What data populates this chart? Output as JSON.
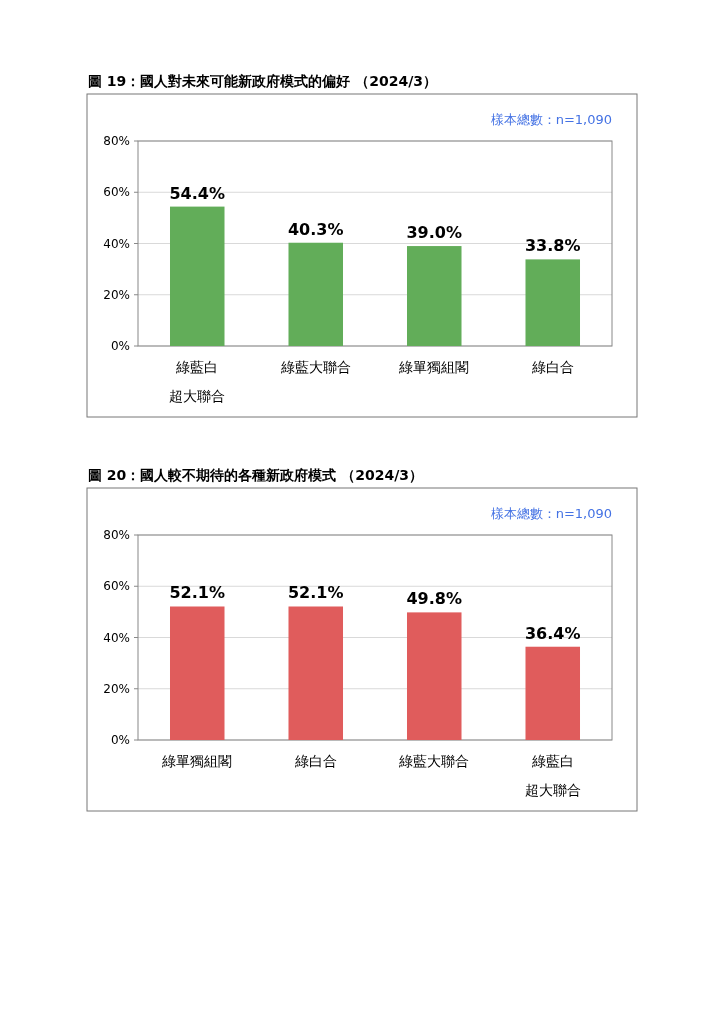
{
  "chart_data": [
    {
      "type": "bar",
      "title": "圖 19：國人對未來可能新政府模式的偏好 （2024/3）",
      "annotations": [
        "樣本總數：n=1,090"
      ],
      "categories": [
        "綠藍白超大聯合",
        "綠藍大聯合",
        "綠單獨組閣",
        "綠白合"
      ],
      "values": [
        54.4,
        40.3,
        39.0,
        33.8
      ],
      "value_labels": [
        "54.4%",
        "40.3%",
        "39.0%",
        "33.8%"
      ],
      "color": "#62ad59",
      "ylim": [
        0,
        80
      ],
      "yticks": [
        {
          "value": 0,
          "label": "0%"
        },
        {
          "value": 20,
          "label": "20%"
        },
        {
          "value": 40,
          "label": "40%"
        },
        {
          "value": 60,
          "label": "60%"
        },
        {
          "value": 80,
          "label": "80%"
        }
      ],
      "grid": "y"
    },
    {
      "type": "bar",
      "title": "圖 20：國人較不期待的各種新政府模式 （2024/3）",
      "annotations": [
        "樣本總數：n=1,090"
      ],
      "categories": [
        "綠單獨組閣",
        "綠白合",
        "綠藍大聯合",
        "綠藍白超大聯合"
      ],
      "values": [
        52.1,
        52.1,
        49.8,
        36.4
      ],
      "value_labels": [
        "52.1%",
        "52.1%",
        "49.8%",
        "36.4%"
      ],
      "color": "#e05c5c",
      "ylim": [
        0,
        80
      ],
      "yticks": [
        {
          "value": 0,
          "label": "0%"
        },
        {
          "value": 20,
          "label": "20%"
        },
        {
          "value": 40,
          "label": "40%"
        },
        {
          "value": 60,
          "label": "60%"
        },
        {
          "value": 80,
          "label": "80%"
        }
      ],
      "grid": "y"
    }
  ]
}
